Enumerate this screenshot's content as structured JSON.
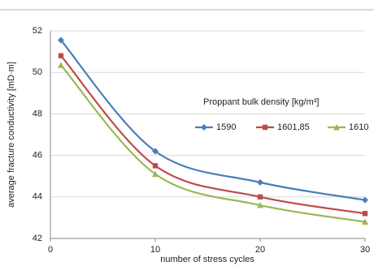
{
  "chart_data": {
    "type": "line",
    "xlabel": "number of stress cycles",
    "ylabel": "average fracture conductivity [mD·m]",
    "legend_title": "Proppant bulk density [kg/m³]",
    "x": [
      1,
      10,
      20,
      30
    ],
    "series": [
      {
        "name": "1590",
        "color": "#4a7ebb",
        "marker": "diamond",
        "values": [
          51.55,
          46.2,
          44.7,
          43.85
        ]
      },
      {
        "name": "1601,85",
        "color": "#be4b48",
        "marker": "square",
        "values": [
          50.8,
          45.5,
          44.0,
          43.2
        ]
      },
      {
        "name": "1610",
        "color": "#98b954",
        "marker": "triangle",
        "values": [
          50.35,
          45.1,
          43.6,
          42.8
        ]
      }
    ],
    "xlim": [
      0,
      30
    ],
    "xticks": [
      0,
      10,
      20,
      30
    ],
    "ylim": [
      42,
      52
    ],
    "yticks": [
      42,
      44,
      46,
      48,
      50,
      52
    ],
    "grid": true,
    "smooth": true
  }
}
